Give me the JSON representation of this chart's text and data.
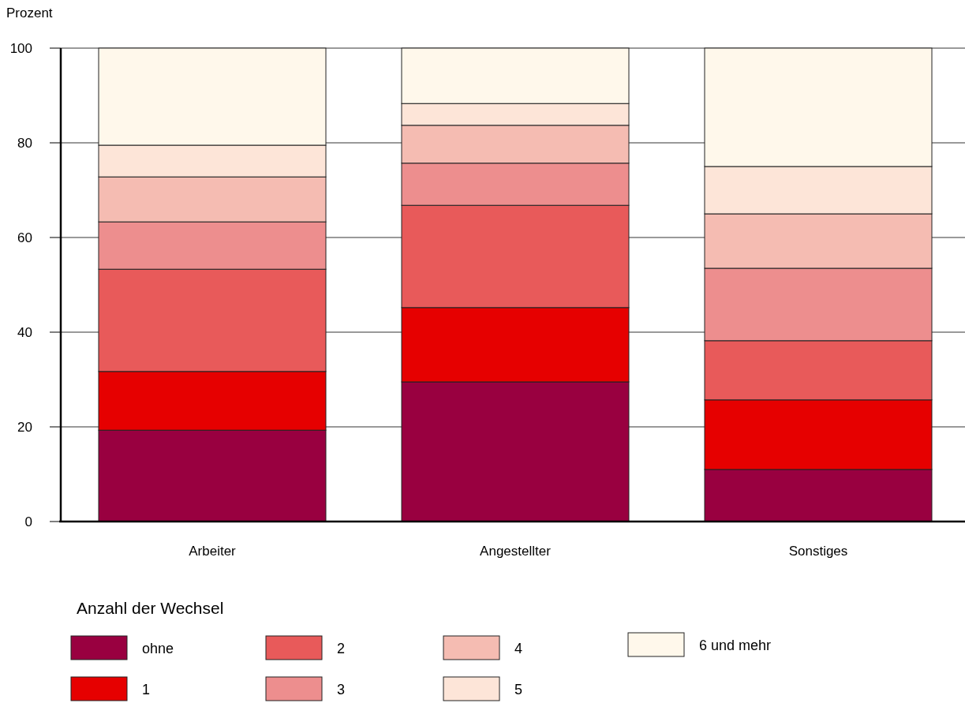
{
  "chart_data": {
    "type": "bar",
    "stacked": true,
    "ylabel": "Prozent",
    "legend_title": "Anzahl der Wechsel",
    "categories": [
      "Arbeiter",
      "Angestellter",
      "Sonstiges"
    ],
    "series": [
      {
        "name": "ohne",
        "color": "#990040",
        "values": [
          19.3,
          29.5,
          11
        ]
      },
      {
        "name": "1",
        "color": "#e60000",
        "values": [
          12.4,
          15.7,
          14.7
        ]
      },
      {
        "name": "2",
        "color": "#e85a5a",
        "values": [
          21.6,
          21.6,
          12.5
        ]
      },
      {
        "name": "3",
        "color": "#ed8e8e",
        "values": [
          10,
          8.9,
          15.3
        ]
      },
      {
        "name": "4",
        "color": "#f5bcb2",
        "values": [
          9.5,
          8,
          11.5
        ]
      },
      {
        "name": "5",
        "color": "#fde5d8",
        "values": [
          6.7,
          4.6,
          10
        ]
      },
      {
        "name": "6 und mehr",
        "color": "#fff8eb",
        "values": [
          20.5,
          11.7,
          25
        ]
      }
    ],
    "ylim": [
      0,
      100
    ],
    "yticks": [
      0,
      20,
      40,
      60,
      80,
      100
    ],
    "grid": "y",
    "legend": "bottom"
  }
}
